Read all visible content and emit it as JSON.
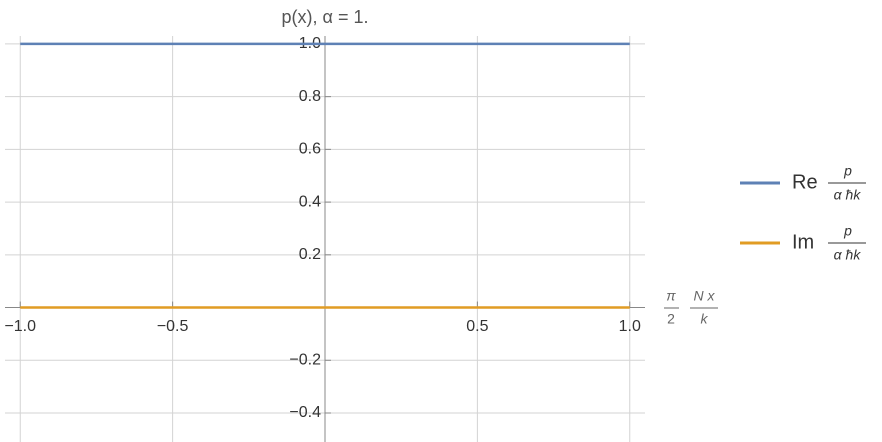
{
  "chart_data": {
    "type": "line",
    "title": "p(x), α = 1.",
    "x_label": {
      "numerator_left": "π",
      "denominator_left": "2",
      "numerator_right": "N x",
      "denominator_right": "k"
    },
    "legend_fraction": {
      "numerator": "p",
      "denominator": "α ħk"
    },
    "x": [
      -1,
      1
    ],
    "series": [
      {
        "name": "Re",
        "color": "#5e81b5",
        "values": [
          1,
          1
        ]
      },
      {
        "name": "Im",
        "color": "#e19c24",
        "values": [
          0,
          0
        ]
      }
    ],
    "xlim": [
      -1.05,
      1.05
    ],
    "ylim": [
      -0.51,
      1.03
    ],
    "xticks": [
      {
        "value": -1,
        "label": "−1.0"
      },
      {
        "value": -0.5,
        "label": "−0.5"
      },
      0.5,
      {
        "value": 1,
        "label": "1.0"
      }
    ],
    "yticks": [
      {
        "value": -0.4,
        "label": "−0.4"
      },
      {
        "value": -0.2,
        "label": "−0.2"
      },
      0.2,
      0.4,
      0.6,
      0.8,
      {
        "value": 1,
        "label": "1.0"
      }
    ],
    "grid": true,
    "legend": "right"
  }
}
